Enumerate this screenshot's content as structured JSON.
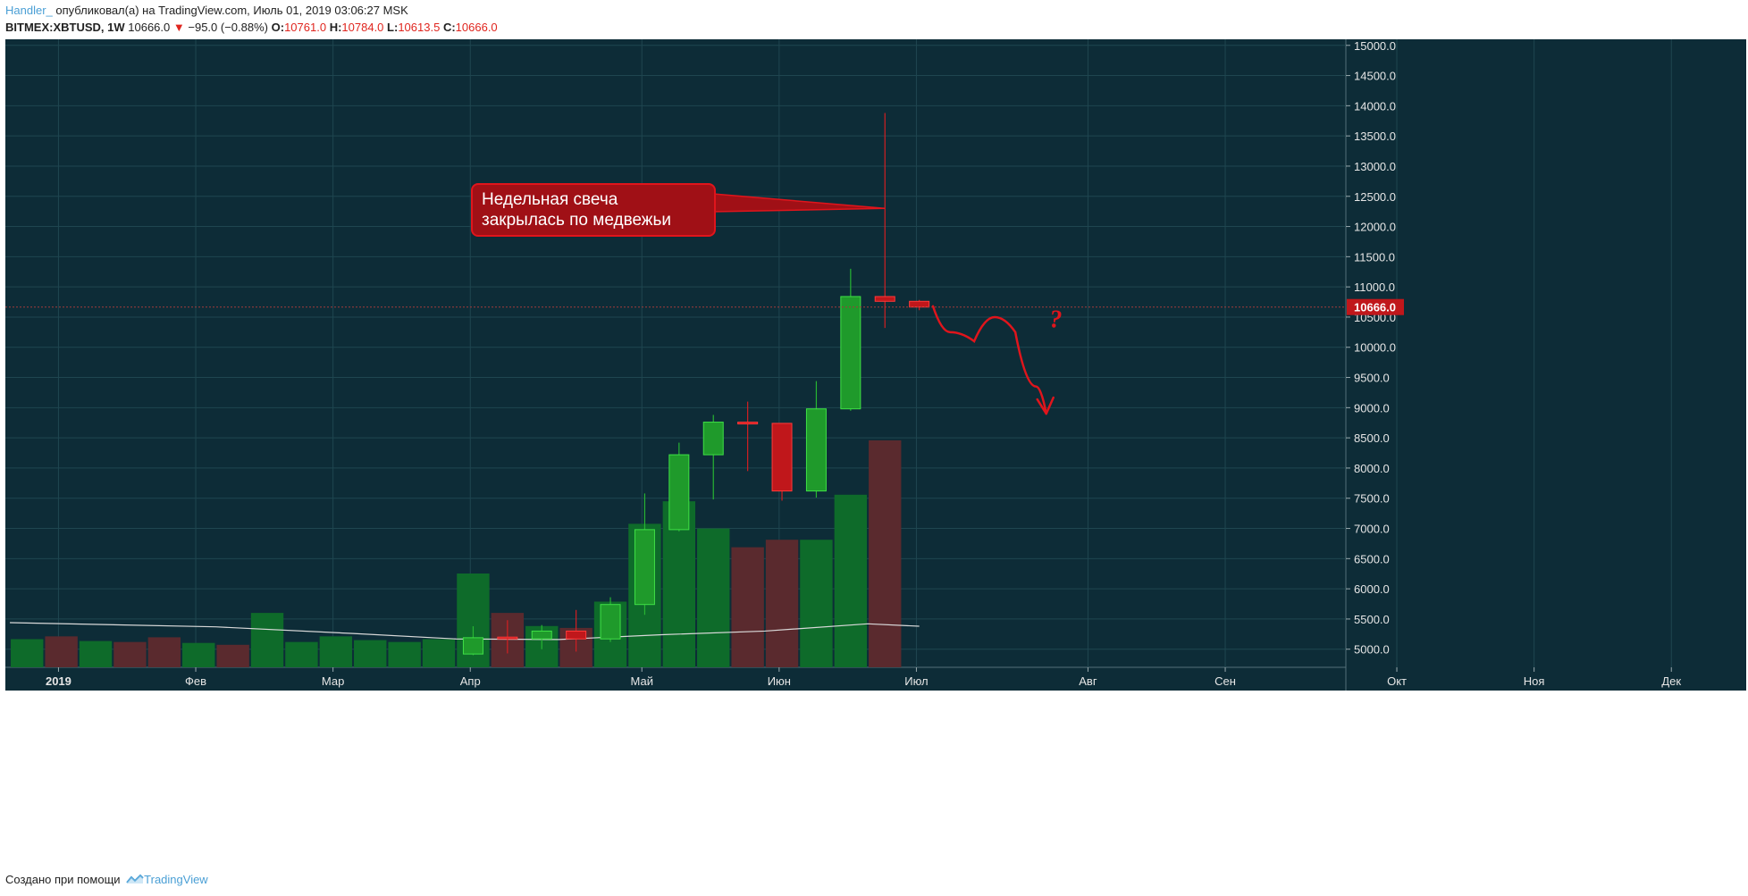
{
  "header": {
    "author": "Handler_",
    "published_text": " опубликовал(а) на TradingView.com, Июль 01, 2019 03:06:27 MSK",
    "symbol": "BITMEX:XBTUSD, 1W",
    "last": "10666.0",
    "change": "−95.0 (−0.88%)",
    "o_label": "O:",
    "o_value": "10761.0",
    "h_label": "H:",
    "h_value": "10784.0",
    "l_label": "L:",
    "l_value": "10613.5",
    "c_label": "C:",
    "c_value": "10666.0"
  },
  "footer": {
    "created_with": "Создано при помощи",
    "brand": "TradingView"
  },
  "colors": {
    "background": "#0d2c37",
    "grid": "#1f4650",
    "up": "#1f9a2b",
    "down": "#c0171b",
    "vol_up": "#0e6b2a",
    "vol_down": "#5a2a2e",
    "annotation": "#e0151c",
    "ma_line": "#d9d9d9",
    "axis_text": "#e6e6e6"
  },
  "chart_data": {
    "type": "candlestick",
    "price_axis": {
      "ticks": [
        5000,
        5500,
        6000,
        6500,
        7000,
        7500,
        8000,
        8500,
        9000,
        9500,
        10000,
        10500,
        11000,
        11500,
        12000,
        12500,
        13000,
        13500,
        14000,
        14500,
        15000
      ],
      "tick_labels": [
        "5000.0",
        "5500.0",
        "6000.0",
        "6500.0",
        "7000.0",
        "7500.0",
        "8000.0",
        "8500.0",
        "9000.0",
        "9500.0",
        "10000.0",
        "10500.0",
        "11000.0",
        "11500.0",
        "12000.0",
        "12500.0",
        "13000.0",
        "13500.0",
        "14000.0",
        "14500.0",
        "15000.0"
      ],
      "range": [
        4700,
        15100
      ],
      "current_price_label": "10666.0",
      "current_price": 10666
    },
    "time_axis": {
      "labels": [
        "2019",
        "Фев",
        "Мар",
        "Апр",
        "Май",
        "Июн",
        "Июл",
        "Авг",
        "Сен",
        "Окт",
        "Ноя",
        "Дек"
      ],
      "label_week_index": [
        1,
        5,
        9,
        13,
        18,
        22,
        26,
        31,
        35,
        40,
        44,
        48
      ],
      "week_range": [
        0,
        49
      ]
    },
    "candles": [
      {
        "week": 13,
        "o": 4920,
        "h": 5380,
        "l": 4900,
        "c": 5190
      },
      {
        "week": 14,
        "o": 5200,
        "h": 5480,
        "l": 4930,
        "c": 5180
      },
      {
        "week": 15,
        "o": 5170,
        "h": 5400,
        "l": 5000,
        "c": 5300
      },
      {
        "week": 16,
        "o": 5300,
        "h": 5650,
        "l": 4960,
        "c": 5170
      },
      {
        "week": 17,
        "o": 5170,
        "h": 5860,
        "l": 5120,
        "c": 5740
      },
      {
        "week": 18,
        "o": 5740,
        "h": 7580,
        "l": 5570,
        "c": 6980
      },
      {
        "week": 19,
        "o": 6980,
        "h": 8420,
        "l": 6950,
        "c": 8220
      },
      {
        "week": 20,
        "o": 8220,
        "h": 8880,
        "l": 7480,
        "c": 8760
      },
      {
        "week": 21,
        "o": 8760,
        "h": 9100,
        "l": 7950,
        "c": 8740
      },
      {
        "week": 22,
        "o": 8740,
        "h": 8740,
        "l": 7460,
        "c": 7620
      },
      {
        "week": 23,
        "o": 7620,
        "h": 9440,
        "l": 7510,
        "c": 8980
      },
      {
        "week": 24,
        "o": 8980,
        "h": 11300,
        "l": 8950,
        "c": 10840
      },
      {
        "week": 25,
        "o": 10840,
        "h": 13880,
        "l": 10320,
        "c": 10761
      },
      {
        "week": 26,
        "o": 10761,
        "h": 10784,
        "l": 10613.5,
        "c": 10666
      }
    ],
    "volume": [
      {
        "week": 0,
        "v": 0.3,
        "up": true
      },
      {
        "week": 1,
        "v": 0.33,
        "up": false
      },
      {
        "week": 2,
        "v": 0.28,
        "up": true
      },
      {
        "week": 3,
        "v": 0.27,
        "up": false
      },
      {
        "week": 4,
        "v": 0.32,
        "up": false
      },
      {
        "week": 5,
        "v": 0.26,
        "up": true
      },
      {
        "week": 6,
        "v": 0.24,
        "up": false
      },
      {
        "week": 7,
        "v": 0.58,
        "up": true
      },
      {
        "week": 8,
        "v": 0.27,
        "up": true
      },
      {
        "week": 9,
        "v": 0.33,
        "up": true
      },
      {
        "week": 10,
        "v": 0.29,
        "up": true
      },
      {
        "week": 11,
        "v": 0.27,
        "up": true
      },
      {
        "week": 12,
        "v": 0.3,
        "up": true
      },
      {
        "week": 13,
        "v": 1.0,
        "up": true
      },
      {
        "week": 14,
        "v": 0.58,
        "up": false
      },
      {
        "week": 15,
        "v": 0.44,
        "up": true
      },
      {
        "week": 16,
        "v": 0.42,
        "up": false
      },
      {
        "week": 17,
        "v": 0.7,
        "up": true
      },
      {
        "week": 18,
        "v": 1.53,
        "up": true
      },
      {
        "week": 19,
        "v": 1.77,
        "up": true
      },
      {
        "week": 20,
        "v": 1.48,
        "up": true
      },
      {
        "week": 21,
        "v": 1.28,
        "up": false
      },
      {
        "week": 22,
        "v": 1.36,
        "up": false
      },
      {
        "week": 23,
        "v": 1.36,
        "up": true
      },
      {
        "week": 24,
        "v": 1.84,
        "up": true
      },
      {
        "week": 25,
        "v": 2.42,
        "up": false
      }
    ],
    "moving_average": [
      {
        "week": 0,
        "price": 5440
      },
      {
        "week": 6,
        "price": 5370
      },
      {
        "week": 10,
        "price": 5260
      },
      {
        "week": 13,
        "price": 5170
      },
      {
        "week": 16,
        "price": 5160
      },
      {
        "week": 19,
        "price": 5240
      },
      {
        "week": 22,
        "price": 5300
      },
      {
        "week": 25,
        "price": 5420
      },
      {
        "week": 26.5,
        "price": 5380
      }
    ],
    "annotation": {
      "text_line1": "Недельная свеча",
      "text_line2": "закрылась по медвежьи",
      "pointer_week": 25,
      "pointer_price": 12300,
      "question_mark": "?"
    },
    "forecast_path": [
      {
        "week": 26.4,
        "price": 10680
      },
      {
        "week": 26.9,
        "price": 10250
      },
      {
        "week": 27.6,
        "price": 10100
      },
      {
        "week": 28.2,
        "price": 10500
      },
      {
        "week": 28.8,
        "price": 10250
      },
      {
        "week": 29.4,
        "price": 9350
      },
      {
        "week": 29.7,
        "price": 8900
      }
    ],
    "question_week": 29.8,
    "question_price": 10330
  }
}
